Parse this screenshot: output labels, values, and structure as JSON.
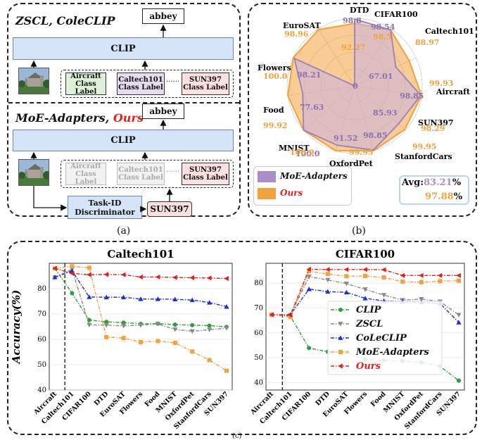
{
  "panel_a": {
    "top_title_part1": "ZSCL, ",
    "top_title_part2": "ColeCLIP",
    "top_output": "abbey",
    "top_clip": "CLIP",
    "top_labels": [
      {
        "line1": "Aircraft",
        "line2": "Class Label",
        "color": "#dff0d8"
      },
      {
        "line1": "Caltech101",
        "line2": "Class Label",
        "color": "#e7dcee"
      },
      {
        "line1": "SUN397",
        "line2": "Class Label",
        "color": "#fbe0e0"
      }
    ],
    "dots": "......",
    "bottom_title_part1": "MoE-Adapters, ",
    "bottom_title_part2": "Ours",
    "bottom_output": "abbey",
    "bottom_clip": "CLIP",
    "bottom_labels": [
      {
        "line1": "Aircraft",
        "line2": "Class Label"
      },
      {
        "line1": "Caltech101",
        "line2": "Class Label"
      },
      {
        "line1": "SUN397",
        "line2": "Class Label"
      }
    ],
    "discriminator_line1": "Task-ID",
    "discriminator_line2": "Discriminator",
    "predicted_task": "SUN397",
    "caption": "(a)"
  },
  "panel_b": {
    "caption": "(b)",
    "axes": [
      "DTD",
      "CIFAR100",
      "Caltech101",
      "Aircraft",
      "SUN397",
      "StanfordCars",
      "OxfordPet",
      "MNIST",
      "Food",
      "Flowers",
      "EuroSAT"
    ],
    "moe_values": [
      98.8,
      98.54,
      67.01,
      98.85,
      85.93,
      98.85,
      91.52,
      100.0,
      77.63,
      98.21,
      0
    ],
    "ours_values": [
      92.27,
      98.5,
      88.97,
      99.93,
      98.29,
      99.95,
      99.95,
      100.0,
      99.92,
      100.0,
      98.96
    ],
    "center_label": "0",
    "moe_labels": [
      "98.8",
      "98.54",
      "67.01",
      "98.85",
      "85.93",
      "98.85",
      "91.52",
      "100.0",
      "77.63",
      "98.21"
    ],
    "ours_labels": [
      "92.27",
      "98.5",
      "88.97",
      "99.93",
      "98.29",
      "99.95",
      "99.95",
      "100.0",
      "99.92",
      "100.0",
      "98.96"
    ],
    "legend": [
      {
        "name": "MoE-Adapters",
        "color": "#a98ec7"
      },
      {
        "name": "Ours",
        "color": "#f2a23c"
      }
    ],
    "avg_label": "Avg:",
    "avg_moe": "83.21",
    "avg_ours": "97.88",
    "pct": "%"
  },
  "chart_data": [
    {
      "type": "line",
      "title": "Caltech101",
      "ylabel": "Accuracy(%)",
      "ylim": [
        40,
        90
      ],
      "yticks": [
        40,
        50,
        60,
        70,
        80
      ],
      "categories": [
        "Aircraft",
        "Caltech101",
        "CIFAR100",
        "DTD",
        "EuroSAT",
        "Flowers",
        "Food",
        "MNIST",
        "OxfordPet",
        "StanfordCars",
        "SUN397"
      ],
      "series": [
        {
          "name": "CLIP",
          "color": "#2e9e3c",
          "marker": "circle",
          "values": [
            88.0,
            78.2,
            67.6,
            66.9,
            66.6,
            66.1,
            66.2,
            65.8,
            65.6,
            65.4,
            64.9
          ]
        },
        {
          "name": "ZSCL",
          "color": "#8a8a8a",
          "marker": "triangle-down",
          "values": [
            84.4,
            87.6,
            65.7,
            65.6,
            65.3,
            65.6,
            66.1,
            63.9,
            63.2,
            63.8,
            64.4
          ]
        },
        {
          "name": "CoLeCLIP",
          "color": "#1f2ed1",
          "marker": "triangle-up",
          "values": [
            84.5,
            87.0,
            76.7,
            76.6,
            76.6,
            75.9,
            75.9,
            75.8,
            75.5,
            74.5,
            72.9
          ]
        },
        {
          "name": "MoE-Adapters",
          "color": "#f2a23c",
          "marker": "square",
          "values": [
            88.0,
            88.8,
            88.2,
            60.9,
            60.5,
            58.9,
            59.3,
            58.6,
            55.2,
            51.8,
            47.6
          ]
        },
        {
          "name": "Ours",
          "color": "#e02020",
          "marker": "triangle-left",
          "values": [
            88.0,
            86.0,
            85.5,
            85.6,
            85.5,
            84.6,
            84.6,
            84.4,
            84.3,
            84.2,
            84.0
          ]
        }
      ]
    },
    {
      "type": "line",
      "title": "CIFAR100",
      "ylim": [
        37,
        88
      ],
      "yticks": [
        40,
        50,
        60,
        70,
        80
      ],
      "categories": [
        "Aircraft",
        "Caltech101",
        "CIFAR100",
        "DTD",
        "EuroSAT",
        "Flowers",
        "Food",
        "MNIST",
        "OxfordPet",
        "StanfordCars",
        "SUN397"
      ],
      "series": [
        {
          "name": "CLIP",
          "color": "#2e9e3c",
          "marker": "circle",
          "values": [
            67.3,
            66.7,
            53.9,
            52.4,
            52.1,
            49.3,
            48.9,
            48.7,
            48.1,
            46.5,
            40.8
          ]
        },
        {
          "name": "ZSCL",
          "color": "#8a8a8a",
          "marker": "triangle-down",
          "values": [
            67.3,
            67.1,
            82.6,
            81.3,
            79.8,
            77.5,
            75.2,
            73.2,
            73.6,
            72.6,
            67.2
          ]
        },
        {
          "name": "CoLeCLIP",
          "color": "#1f2ed1",
          "marker": "triangle-up",
          "values": [
            67.3,
            67.3,
            77.6,
            76.6,
            76.3,
            73.9,
            72.9,
            72.6,
            72.3,
            71.8,
            64.2
          ]
        },
        {
          "name": "MoE-Adapters",
          "color": "#f2a23c",
          "marker": "square",
          "values": [
            67.3,
            66.4,
            84.8,
            83.7,
            82.8,
            82.9,
            82.3,
            80.6,
            80.4,
            80.8,
            81.0
          ]
        },
        {
          "name": "Ours",
          "color": "#e02020",
          "marker": "triangle-left",
          "values": [
            67.3,
            67.1,
            85.6,
            85.5,
            85.5,
            85.5,
            85.4,
            83.1,
            83.1,
            83.1,
            83.1
          ]
        }
      ]
    }
  ],
  "panel_c": {
    "caption": "(c)"
  }
}
